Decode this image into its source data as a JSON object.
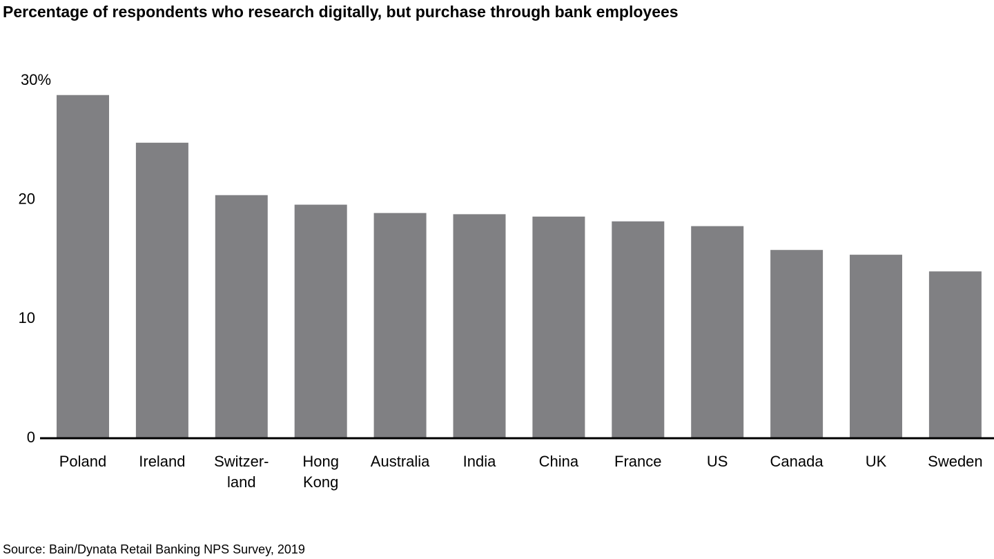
{
  "chart_data": {
    "type": "bar",
    "title": "Percentage of respondents who research digitally, but purchase through bank employees",
    "source": "Source: Bain/Dynata Retail Banking NPS Survey, 2019",
    "categories": [
      [
        "Poland"
      ],
      [
        "Ireland"
      ],
      [
        "Switzer-",
        "land"
      ],
      [
        "Hong",
        "Kong"
      ],
      [
        "Australia"
      ],
      [
        "India"
      ],
      [
        "China"
      ],
      [
        "France"
      ],
      [
        "US"
      ],
      [
        "Canada"
      ],
      [
        "UK"
      ],
      [
        "Sweden"
      ]
    ],
    "values": [
      28.8,
      24.8,
      20.4,
      19.6,
      18.9,
      18.8,
      18.6,
      18.2,
      17.8,
      15.8,
      15.4,
      14.0
    ],
    "color": "#808083",
    "ylim": [
      0,
      30
    ],
    "yticks": [
      0,
      10,
      20,
      {
        "value": 30,
        "label": "30%"
      }
    ],
    "grid": false
  }
}
